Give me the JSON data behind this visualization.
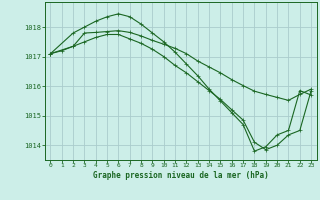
{
  "title": "Graphe pression niveau de la mer (hPa)",
  "background_color": "#cceee8",
  "grid_color": "#aacccc",
  "line_color": "#1a6622",
  "xlim": [
    -0.5,
    23.5
  ],
  "ylim": [
    1013.5,
    1018.85
  ],
  "yticks": [
    1014,
    1015,
    1016,
    1017,
    1018
  ],
  "xticks": [
    0,
    1,
    2,
    3,
    4,
    5,
    6,
    7,
    8,
    9,
    10,
    11,
    12,
    13,
    14,
    15,
    16,
    17,
    18,
    19,
    20,
    21,
    22,
    23
  ],
  "line1_x": [
    0,
    1,
    2,
    3,
    4,
    5,
    6,
    7,
    8,
    9,
    10,
    11,
    12,
    13,
    14,
    15,
    16,
    17,
    18,
    19,
    20,
    21,
    22,
    23
  ],
  "line1_y": [
    1017.1,
    1017.2,
    1017.35,
    1017.8,
    1017.82,
    1017.85,
    1017.88,
    1017.82,
    1017.7,
    1017.55,
    1017.42,
    1017.28,
    1017.1,
    1016.85,
    1016.65,
    1016.45,
    1016.22,
    1016.02,
    1015.83,
    1015.72,
    1015.62,
    1015.52,
    1015.72,
    1015.9
  ],
  "line2_x": [
    0,
    2,
    3,
    4,
    5,
    6,
    7,
    8,
    9,
    10,
    11,
    12,
    13,
    14,
    15,
    16,
    17,
    18,
    19,
    20,
    21,
    22,
    23
  ],
  "line2_y": [
    1017.1,
    1017.8,
    1018.0,
    1018.2,
    1018.35,
    1018.45,
    1018.35,
    1018.1,
    1017.8,
    1017.5,
    1017.15,
    1016.75,
    1016.35,
    1015.9,
    1015.5,
    1015.1,
    1014.7,
    1013.8,
    1013.95,
    1014.35,
    1014.5,
    1015.85,
    1015.7
  ],
  "line3_x": [
    0,
    2,
    3,
    4,
    5,
    6,
    7,
    8,
    9,
    10,
    11,
    12,
    13,
    14,
    15,
    16,
    17,
    18,
    19,
    20,
    21,
    22,
    23
  ],
  "line3_y": [
    1017.1,
    1017.35,
    1017.5,
    1017.65,
    1017.75,
    1017.75,
    1017.6,
    1017.45,
    1017.25,
    1017.0,
    1016.7,
    1016.45,
    1016.15,
    1015.85,
    1015.55,
    1015.2,
    1014.85,
    1014.1,
    1013.85,
    1014.0,
    1014.35,
    1014.5,
    1015.85
  ]
}
